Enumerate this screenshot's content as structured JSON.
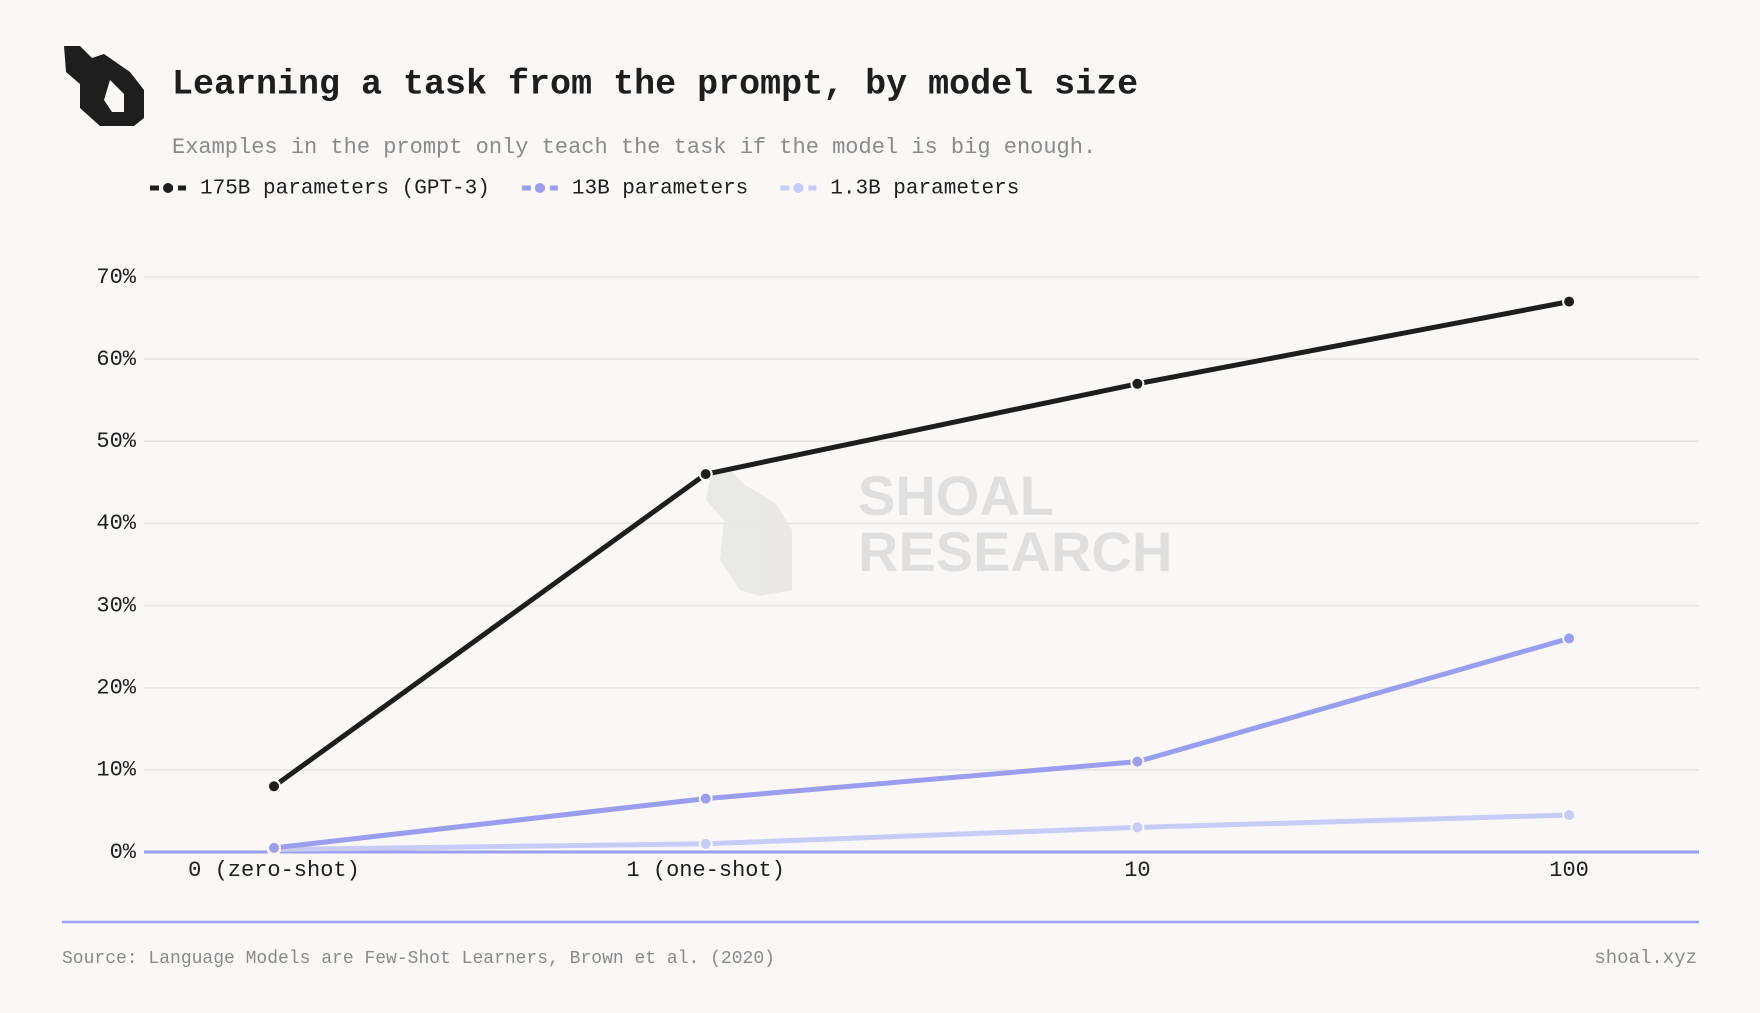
{
  "chart_data": {
    "type": "line",
    "title": "Learning a task from the prompt, by model size",
    "subtitle": "Examples in the prompt only teach the task if the model is big enough.",
    "categories": [
      "0 (zero-shot)",
      "1 (one-shot)",
      "10",
      "100"
    ],
    "series": [
      {
        "name": "175B parameters (GPT-3)",
        "color": "#1e1e1e",
        "values": [
          8,
          46,
          57,
          67
        ]
      },
      {
        "name": "13B parameters",
        "color": "#9b9ef0",
        "values": [
          0.5,
          6.5,
          11,
          26
        ]
      },
      {
        "name": "1.3B parameters",
        "color": "#c8cbf5",
        "values": [
          0.3,
          1,
          3,
          4.5
        ]
      }
    ],
    "ylim": [
      0,
      70
    ],
    "yticks": [
      {
        "value": 0,
        "label": "0%"
      },
      {
        "value": 10,
        "label": "10%"
      },
      {
        "value": 20,
        "label": "20%"
      },
      {
        "value": 30,
        "label": "30%"
      },
      {
        "value": 40,
        "label": "40%"
      },
      {
        "value": 50,
        "label": "50%"
      },
      {
        "value": 60,
        "label": "60%"
      },
      {
        "value": 70,
        "label": "70%"
      }
    ],
    "grid": true,
    "watermark": [
      "SHOAL",
      "RESEARCH"
    ],
    "source": "Source: Language Models are Few-Shot Learners, Brown et al. (2020)",
    "credit": "shoal.xyz"
  }
}
